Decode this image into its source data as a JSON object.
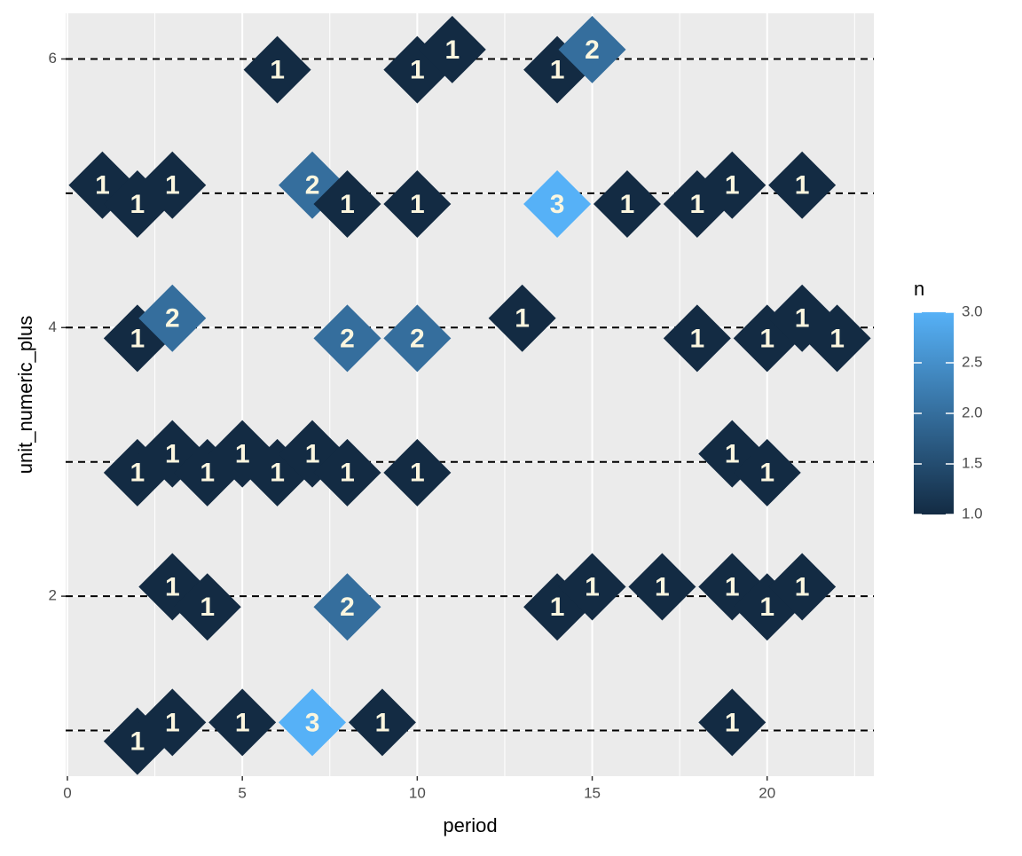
{
  "chart_data": {
    "type": "scatter",
    "x_label": "period",
    "y_label": "unit_numeric_plus",
    "x": [
      6,
      10,
      11,
      14,
      15,
      1,
      2,
      3,
      7,
      8,
      10,
      14,
      16,
      18,
      19,
      21,
      2,
      3,
      8,
      10,
      13,
      18,
      20,
      21,
      22,
      2,
      3,
      4,
      5,
      6,
      7,
      8,
      10,
      19,
      20,
      3,
      4,
      8,
      14,
      15,
      17,
      19,
      20,
      21,
      2,
      3,
      5,
      7,
      9,
      19
    ],
    "values": [
      5.92,
      5.92,
      6.07,
      5.92,
      6.07,
      5.06,
      4.92,
      5.06,
      5.06,
      4.92,
      4.92,
      4.92,
      4.92,
      4.92,
      5.06,
      5.06,
      3.92,
      4.07,
      3.92,
      3.92,
      4.07,
      3.92,
      3.92,
      4.07,
      3.92,
      2.92,
      3.06,
      2.92,
      3.06,
      2.92,
      3.06,
      2.92,
      2.92,
      3.06,
      2.92,
      2.07,
      1.92,
      1.92,
      1.92,
      2.07,
      2.07,
      2.07,
      1.92,
      2.07,
      0.92,
      1.06,
      1.06,
      1.06,
      1.06,
      1.06
    ],
    "n": [
      1,
      1,
      1,
      1,
      2,
      1,
      1,
      1,
      2,
      1,
      1,
      3,
      1,
      1,
      1,
      1,
      1,
      2,
      2,
      2,
      1,
      1,
      1,
      1,
      1,
      1,
      1,
      1,
      1,
      1,
      1,
      1,
      1,
      1,
      1,
      1,
      1,
      2,
      1,
      1,
      1,
      1,
      1,
      1,
      1,
      1,
      1,
      3,
      1,
      1
    ],
    "hlines": [
      1,
      2,
      3,
      4,
      5,
      6
    ],
    "xlim": [
      -0.05,
      23.05
    ],
    "xticks": [
      0,
      5,
      10,
      15,
      20
    ],
    "ylim": [
      0.66,
      6.34
    ],
    "yticks": [
      2,
      4,
      6
    ],
    "grid": true,
    "legend_title": "n",
    "color_low": "#132B43",
    "color_high": "#56B1F7",
    "color_lim": [
      1,
      3
    ],
    "legend_ticks": [
      {
        "value": 1,
        "label": "1.0"
      },
      {
        "value": 1.5,
        "label": "1.5"
      },
      {
        "value": 2,
        "label": "2.0"
      },
      {
        "value": 2.5,
        "label": "2.5"
      },
      {
        "value": 3,
        "label": "3.0"
      }
    ]
  }
}
